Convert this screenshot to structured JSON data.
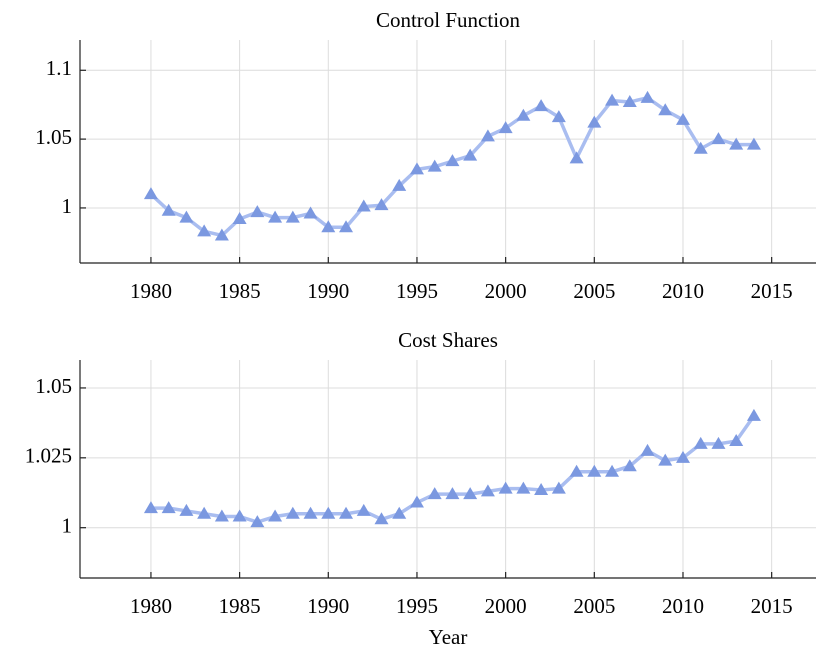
{
  "chart_data": [
    {
      "type": "line",
      "title": "Control Function",
      "x": [
        1980,
        1981,
        1982,
        1983,
        1984,
        1985,
        1986,
        1987,
        1988,
        1989,
        1990,
        1991,
        1992,
        1993,
        1994,
        1995,
        1996,
        1997,
        1998,
        1999,
        2000,
        2001,
        2002,
        2003,
        2004,
        2005,
        2006,
        2007,
        2008,
        2009,
        2010,
        2011,
        2012,
        2013,
        2014
      ],
      "series": [
        {
          "color": "#a9bdf0",
          "marker_color": "#7b98e0",
          "values": [
            1.01,
            0.998,
            0.993,
            0.983,
            0.98,
            0.992,
            0.997,
            0.993,
            0.993,
            0.996,
            0.986,
            0.986,
            1.001,
            1.002,
            1.016,
            1.028,
            1.03,
            1.034,
            1.038,
            1.052,
            1.058,
            1.067,
            1.074,
            1.066,
            1.036,
            1.062,
            1.078,
            1.077,
            1.08,
            1.071,
            1.064,
            1.043,
            1.05,
            1.046,
            1.046
          ]
        }
      ],
      "xlim": [
        1976,
        2017.5
      ],
      "xticks": [
        1980,
        1985,
        1990,
        1995,
        2000,
        2005,
        2010,
        2015
      ],
      "ylim": [
        0.96,
        1.122
      ],
      "yticks": [
        1,
        1.05,
        1.1
      ],
      "grid": true
    },
    {
      "type": "line",
      "title": "Cost Shares",
      "xlabel": "Year",
      "x": [
        1980,
        1981,
        1982,
        1983,
        1984,
        1985,
        1986,
        1987,
        1988,
        1989,
        1990,
        1991,
        1992,
        1993,
        1994,
        1995,
        1996,
        1997,
        1998,
        1999,
        2000,
        2001,
        2002,
        2003,
        2004,
        2005,
        2006,
        2007,
        2008,
        2009,
        2010,
        2011,
        2012,
        2013,
        2014
      ],
      "series": [
        {
          "color": "#a9bdf0",
          "marker_color": "#7b98e0",
          "values": [
            1.007,
            1.007,
            1.006,
            1.005,
            1.004,
            1.004,
            1.002,
            1.004,
            1.005,
            1.005,
            1.005,
            1.005,
            1.006,
            1.003,
            1.005,
            1.009,
            1.012,
            1.012,
            1.012,
            1.013,
            1.014,
            1.014,
            1.0135,
            1.014,
            1.02,
            1.02,
            1.02,
            1.022,
            1.0275,
            1.024,
            1.025,
            1.03,
            1.03,
            1.031,
            1.04
          ]
        }
      ],
      "xlim": [
        1976,
        2017.5
      ],
      "xticks": [
        1980,
        1985,
        1990,
        1995,
        2000,
        2005,
        2010,
        2015
      ],
      "ylim": [
        0.982,
        1.06
      ],
      "yticks": [
        1,
        1.025,
        1.05
      ],
      "grid": true
    }
  ]
}
